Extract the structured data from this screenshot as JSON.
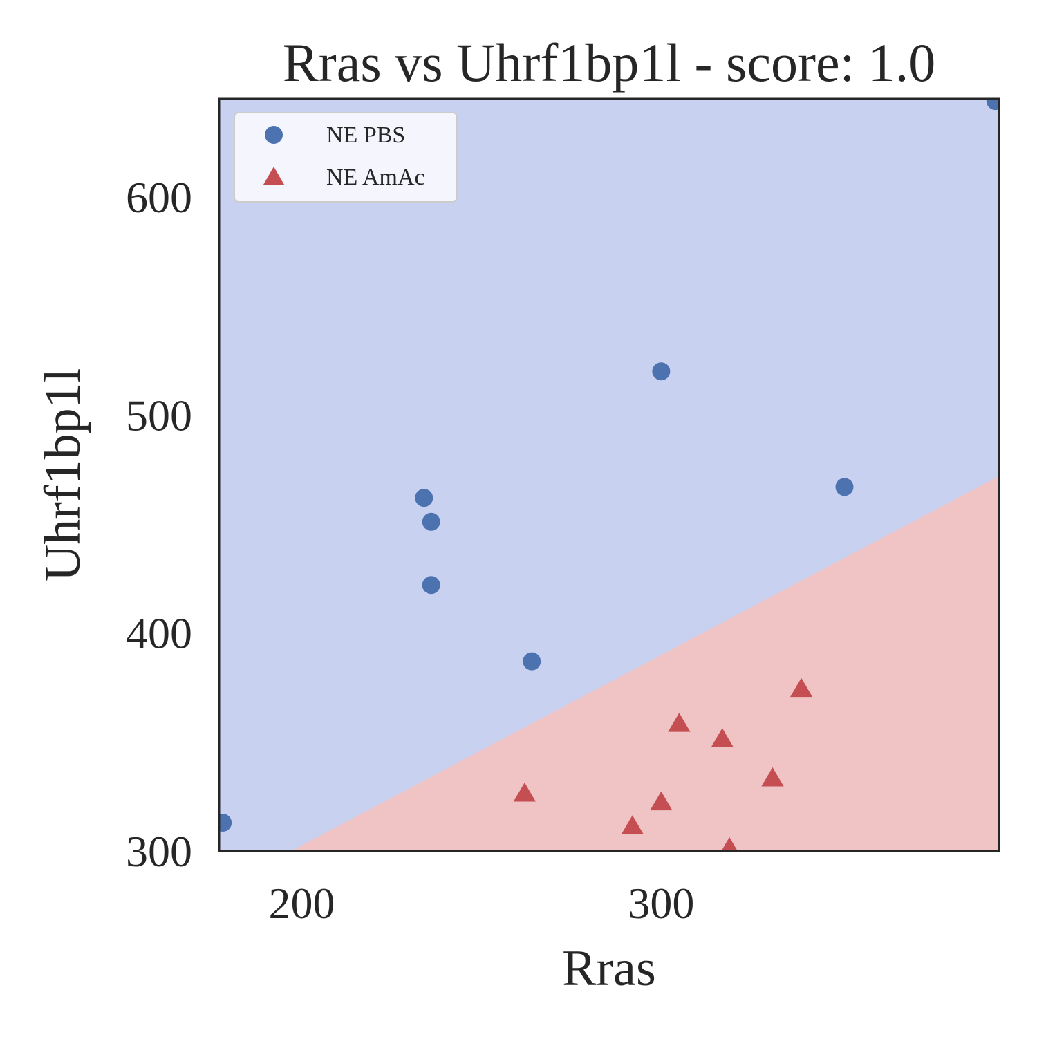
{
  "chart_data": {
    "type": "scatter",
    "title": "Rras vs Uhrf1bp1l - score: 1.0",
    "xlabel": "Rras",
    "ylabel": "Uhrf1bp1l",
    "xlim": [
      177,
      394
    ],
    "ylim": [
      300,
      645
    ],
    "xticks": [
      200,
      300
    ],
    "yticks": [
      300,
      400,
      500,
      600
    ],
    "grid": false,
    "legend_position": "top-left",
    "decision_boundary": {
      "points": [
        [
          197,
          300
        ],
        [
          394,
          472
        ]
      ],
      "above_region_color": "#c9d1f1",
      "below_region_color": "#f0c4c4"
    },
    "series": [
      {
        "name": "NE PBS",
        "marker": "circle",
        "color": "#4c72b0",
        "points": [
          [
            178,
            313
          ],
          [
            234,
            462
          ],
          [
            236,
            451
          ],
          [
            236,
            422
          ],
          [
            264,
            387
          ],
          [
            300,
            520
          ],
          [
            351,
            467
          ],
          [
            393,
            644
          ]
        ]
      },
      {
        "name": "NE AmAc",
        "marker": "triangle",
        "color": "#c44e52",
        "points": [
          [
            262,
            326
          ],
          [
            292,
            311
          ],
          [
            300,
            322
          ],
          [
            305,
            358
          ],
          [
            317,
            351
          ],
          [
            319,
            301
          ],
          [
            331,
            333
          ],
          [
            339,
            374
          ]
        ]
      }
    ]
  }
}
